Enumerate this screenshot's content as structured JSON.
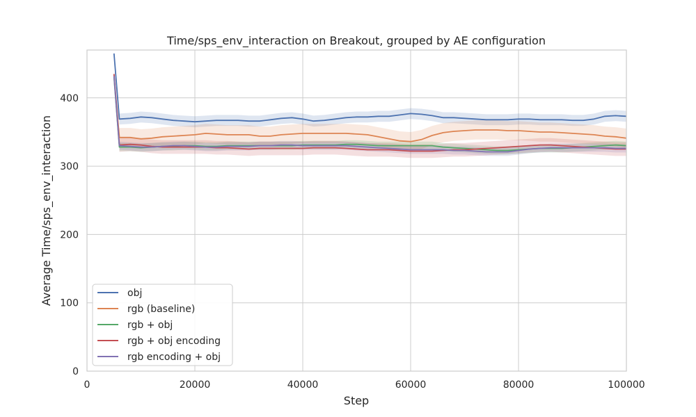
{
  "chart_data": {
    "type": "line",
    "title": "Time/sps_env_interaction on Breakout, grouped by AE configuration",
    "xlabel": "Step",
    "ylabel": "Average Time/sps_env_interaction",
    "xlim": [
      0,
      100000
    ],
    "ylim": [
      0,
      470
    ],
    "xticks": [
      0,
      20000,
      40000,
      60000,
      80000,
      100000
    ],
    "xtick_labels": [
      "0",
      "20000",
      "40000",
      "60000",
      "80000",
      "100000"
    ],
    "yticks": [
      0,
      100,
      200,
      300,
      400
    ],
    "ytick_labels": [
      "0",
      "100",
      "200",
      "300",
      "400"
    ],
    "grid": true,
    "legend_position": "lower-left",
    "x": [
      5000,
      6000,
      8000,
      10000,
      12000,
      14000,
      16000,
      18000,
      20000,
      22000,
      24000,
      26000,
      28000,
      30000,
      32000,
      34000,
      36000,
      38000,
      40000,
      42000,
      44000,
      46000,
      48000,
      50000,
      52000,
      54000,
      56000,
      58000,
      60000,
      62000,
      64000,
      66000,
      68000,
      70000,
      72000,
      74000,
      76000,
      78000,
      80000,
      82000,
      84000,
      86000,
      88000,
      90000,
      92000,
      94000,
      96000,
      98000,
      100000
    ],
    "series": [
      {
        "name": "obj",
        "color": "#4c72b0",
        "values": [
          465,
          369,
          370,
          372,
          371,
          369,
          367,
          366,
          365,
          366,
          367,
          367,
          367,
          366,
          366,
          368,
          370,
          371,
          369,
          366,
          367,
          369,
          371,
          372,
          372,
          373,
          373,
          375,
          377,
          376,
          374,
          371,
          371,
          370,
          369,
          368,
          368,
          368,
          369,
          369,
          368,
          368,
          368,
          367,
          367,
          369,
          373,
          374,
          373
        ],
        "band": 8
      },
      {
        "name": "rgb (baseline)",
        "color": "#dd8452",
        "values": [
          433,
          342,
          342,
          340,
          341,
          343,
          344,
          345,
          346,
          348,
          347,
          346,
          346,
          346,
          344,
          344,
          346,
          347,
          348,
          348,
          348,
          348,
          348,
          347,
          346,
          343,
          340,
          337,
          336,
          339,
          345,
          349,
          351,
          352,
          353,
          353,
          353,
          352,
          352,
          351,
          350,
          350,
          349,
          348,
          347,
          346,
          344,
          343,
          341
        ],
        "band": 14
      },
      {
        "name": "rgb + obj",
        "color": "#55a868",
        "values": [
          430,
          328,
          328,
          327,
          328,
          329,
          329,
          330,
          330,
          329,
          329,
          330,
          330,
          330,
          330,
          330,
          330,
          330,
          331,
          331,
          331,
          331,
          332,
          332,
          331,
          330,
          330,
          330,
          330,
          330,
          330,
          328,
          327,
          326,
          325,
          324,
          323,
          323,
          324,
          325,
          326,
          326,
          326,
          327,
          328,
          329,
          330,
          331,
          330
        ],
        "band": 6
      },
      {
        "name": "rgb + obj encoding",
        "color": "#c44e52",
        "values": [
          435,
          331,
          332,
          331,
          329,
          328,
          328,
          328,
          328,
          328,
          327,
          327,
          326,
          325,
          326,
          326,
          326,
          326,
          326,
          327,
          327,
          327,
          326,
          325,
          324,
          324,
          324,
          323,
          322,
          322,
          322,
          323,
          324,
          324,
          325,
          326,
          327,
          328,
          329,
          330,
          331,
          331,
          330,
          329,
          328,
          327,
          326,
          325,
          325
        ],
        "band": 10
      },
      {
        "name": "rgb encoding + obj",
        "color": "#8172b3",
        "values": [
          432,
          330,
          329,
          328,
          328,
          329,
          330,
          330,
          329,
          328,
          328,
          329,
          329,
          329,
          330,
          330,
          331,
          331,
          330,
          330,
          330,
          330,
          330,
          329,
          328,
          327,
          326,
          325,
          324,
          324,
          324,
          324,
          323,
          323,
          322,
          321,
          321,
          321,
          323,
          325,
          326,
          327,
          327,
          327,
          327,
          327,
          327,
          326,
          326
        ],
        "band": 6
      }
    ]
  }
}
